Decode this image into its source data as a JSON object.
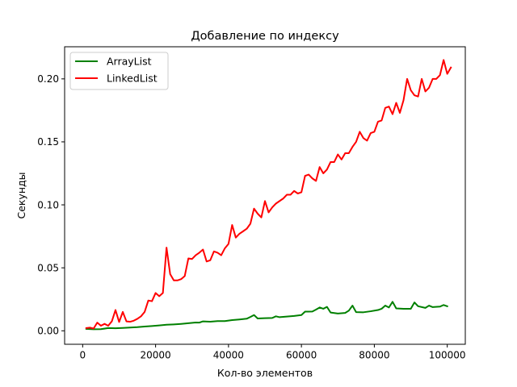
{
  "chart_data": {
    "type": "line",
    "title": "Добавление по индексу",
    "xlabel": "Кол-во элементов",
    "ylabel": "Секунды",
    "xlim": [
      -4950,
      104950
    ],
    "ylim": [
      -0.0107,
      0.2255
    ],
    "xticks": [
      0,
      20000,
      40000,
      60000,
      80000,
      100000
    ],
    "xtick_labels": [
      "0",
      "20000",
      "40000",
      "60000",
      "80000",
      "100000"
    ],
    "yticks": [
      0.0,
      0.05,
      0.1,
      0.15,
      0.2
    ],
    "ytick_labels": [
      "0.00",
      "0.05",
      "0.10",
      "0.15",
      "0.20"
    ],
    "grid": false,
    "legend": "top-left",
    "series": [
      {
        "name": "ArrayList",
        "color": "#008000",
        "points": [
          [
            1000,
            0.0015
          ],
          [
            3000,
            0.0012
          ],
          [
            5000,
            0.0013
          ],
          [
            7000,
            0.0022
          ],
          [
            9000,
            0.002
          ],
          [
            11000,
            0.0023
          ],
          [
            13000,
            0.0026
          ],
          [
            15000,
            0.0029
          ],
          [
            17000,
            0.0034
          ],
          [
            19000,
            0.0038
          ],
          [
            21000,
            0.0043
          ],
          [
            23000,
            0.0048
          ],
          [
            25000,
            0.0051
          ],
          [
            27000,
            0.0055
          ],
          [
            29000,
            0.006
          ],
          [
            31000,
            0.0066
          ],
          [
            32000,
            0.0065
          ],
          [
            33000,
            0.0075
          ],
          [
            35000,
            0.0072
          ],
          [
            37000,
            0.0077
          ],
          [
            39000,
            0.0077
          ],
          [
            41000,
            0.0085
          ],
          [
            43000,
            0.009
          ],
          [
            45000,
            0.0096
          ],
          [
            46000,
            0.011
          ],
          [
            47000,
            0.0125
          ],
          [
            48000,
            0.0098
          ],
          [
            50000,
            0.01
          ],
          [
            52000,
            0.0102
          ],
          [
            53000,
            0.0115
          ],
          [
            54000,
            0.0108
          ],
          [
            56000,
            0.0113
          ],
          [
            58000,
            0.0118
          ],
          [
            60000,
            0.0125
          ],
          [
            61000,
            0.0152
          ],
          [
            63000,
            0.0153
          ],
          [
            64000,
            0.0168
          ],
          [
            65000,
            0.0185
          ],
          [
            66000,
            0.0175
          ],
          [
            67000,
            0.019
          ],
          [
            68000,
            0.0145
          ],
          [
            70000,
            0.0137
          ],
          [
            72000,
            0.0142
          ],
          [
            73000,
            0.016
          ],
          [
            74000,
            0.02
          ],
          [
            75000,
            0.0148
          ],
          [
            77000,
            0.0147
          ],
          [
            79000,
            0.0155
          ],
          [
            81000,
            0.0165
          ],
          [
            82000,
            0.0175
          ],
          [
            83000,
            0.02
          ],
          [
            84000,
            0.0185
          ],
          [
            85000,
            0.023
          ],
          [
            86000,
            0.0178
          ],
          [
            88000,
            0.0175
          ],
          [
            90000,
            0.0175
          ],
          [
            91000,
            0.0225
          ],
          [
            92000,
            0.0195
          ],
          [
            94000,
            0.0182
          ],
          [
            95000,
            0.02
          ],
          [
            96000,
            0.0188
          ],
          [
            98000,
            0.0192
          ],
          [
            99000,
            0.0205
          ],
          [
            100000,
            0.0195
          ]
        ]
      },
      {
        "name": "LinkedList",
        "color": "#ff0000",
        "points": [
          [
            1000,
            0.0022
          ],
          [
            2000,
            0.0025
          ],
          [
            3000,
            0.0018
          ],
          [
            4000,
            0.0065
          ],
          [
            5000,
            0.004
          ],
          [
            6000,
            0.0055
          ],
          [
            7000,
            0.004
          ],
          [
            8000,
            0.0075
          ],
          [
            9000,
            0.0165
          ],
          [
            10000,
            0.007
          ],
          [
            11000,
            0.015
          ],
          [
            12000,
            0.0075
          ],
          [
            13000,
            0.0072
          ],
          [
            14000,
            0.008
          ],
          [
            15000,
            0.0095
          ],
          [
            16000,
            0.0115
          ],
          [
            17000,
            0.015
          ],
          [
            18000,
            0.024
          ],
          [
            19000,
            0.0235
          ],
          [
            20000,
            0.03
          ],
          [
            21000,
            0.0275
          ],
          [
            22000,
            0.03
          ],
          [
            23000,
            0.066
          ],
          [
            24000,
            0.045
          ],
          [
            25000,
            0.04
          ],
          [
            26000,
            0.04
          ],
          [
            27000,
            0.041
          ],
          [
            28000,
            0.0435
          ],
          [
            29000,
            0.0575
          ],
          [
            30000,
            0.057
          ],
          [
            31000,
            0.06
          ],
          [
            32000,
            0.062
          ],
          [
            33000,
            0.0645
          ],
          [
            34000,
            0.055
          ],
          [
            35000,
            0.056
          ],
          [
            36000,
            0.063
          ],
          [
            37000,
            0.062
          ],
          [
            38000,
            0.06
          ],
          [
            39000,
            0.0655
          ],
          [
            40000,
            0.069
          ],
          [
            41000,
            0.084
          ],
          [
            42000,
            0.074
          ],
          [
            43000,
            0.077
          ],
          [
            44000,
            0.079
          ],
          [
            45000,
            0.081
          ],
          [
            46000,
            0.085
          ],
          [
            47000,
            0.097
          ],
          [
            48000,
            0.093
          ],
          [
            49000,
            0.09
          ],
          [
            50000,
            0.103
          ],
          [
            51000,
            0.094
          ],
          [
            52000,
            0.098
          ],
          [
            53000,
            0.101
          ],
          [
            54000,
            0.103
          ],
          [
            55000,
            0.105
          ],
          [
            56000,
            0.108
          ],
          [
            57000,
            0.108
          ],
          [
            58000,
            0.111
          ],
          [
            59000,
            0.109
          ],
          [
            60000,
            0.11
          ],
          [
            61000,
            0.123
          ],
          [
            62000,
            0.124
          ],
          [
            63000,
            0.121
          ],
          [
            64000,
            0.119
          ],
          [
            65000,
            0.13
          ],
          [
            66000,
            0.125
          ],
          [
            67000,
            0.128
          ],
          [
            68000,
            0.134
          ],
          [
            69000,
            0.134
          ],
          [
            70000,
            0.14
          ],
          [
            71000,
            0.136
          ],
          [
            72000,
            0.141
          ],
          [
            73000,
            0.141
          ],
          [
            74000,
            0.146
          ],
          [
            75000,
            0.15
          ],
          [
            76000,
            0.158
          ],
          [
            77000,
            0.153
          ],
          [
            78000,
            0.151
          ],
          [
            79000,
            0.157
          ],
          [
            80000,
            0.158
          ],
          [
            81000,
            0.166
          ],
          [
            82000,
            0.167
          ],
          [
            83000,
            0.177
          ],
          [
            84000,
            0.178
          ],
          [
            85000,
            0.172
          ],
          [
            86000,
            0.181
          ],
          [
            87000,
            0.173
          ],
          [
            88000,
            0.183
          ],
          [
            89000,
            0.2
          ],
          [
            90000,
            0.191
          ],
          [
            91000,
            0.187
          ],
          [
            92000,
            0.186
          ],
          [
            93000,
            0.2
          ],
          [
            94000,
            0.19
          ],
          [
            95000,
            0.193
          ],
          [
            96000,
            0.2
          ],
          [
            97000,
            0.2
          ],
          [
            98000,
            0.203
          ],
          [
            99000,
            0.215
          ],
          [
            100000,
            0.204
          ],
          [
            101000,
            0.209
          ]
        ]
      }
    ]
  }
}
